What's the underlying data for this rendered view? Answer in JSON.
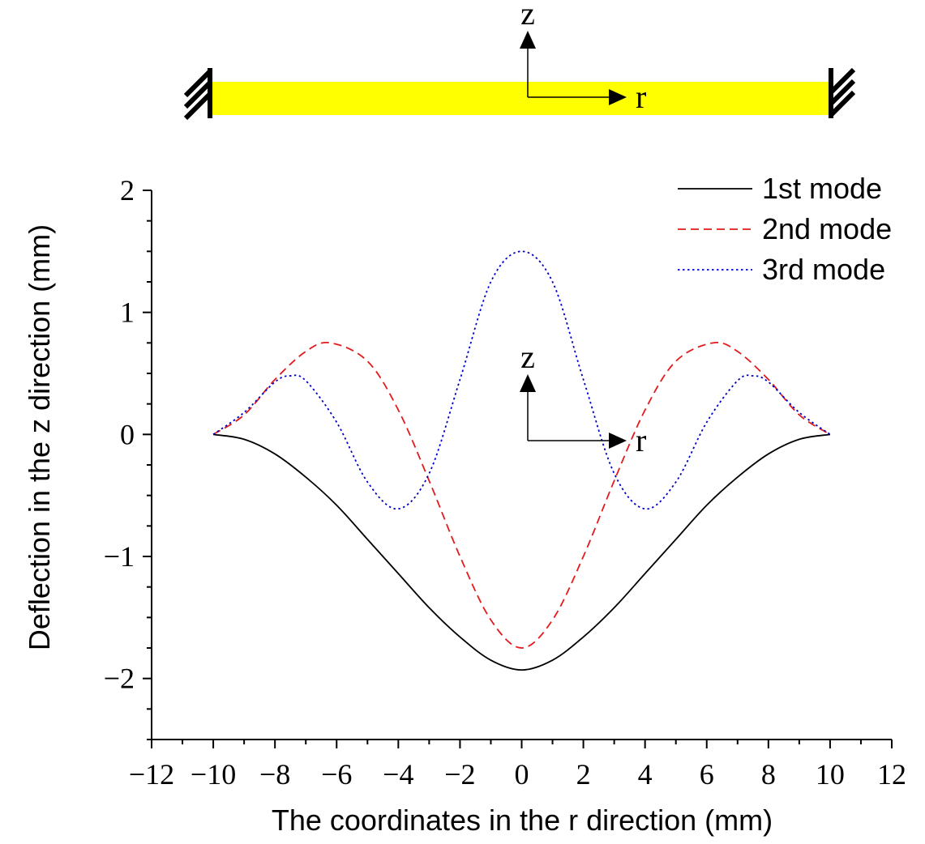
{
  "beam_diagram": {
    "beam_color": "#FFFF00",
    "axis_z_label": "z",
    "axis_r_label": "r"
  },
  "plot_coord_labels": {
    "z": "z",
    "r": "r"
  },
  "chart_data": {
    "type": "line",
    "title": "",
    "xlabel": "The coordinates in the r direction (mm)",
    "ylabel": "Deflection in the z direction (mm)",
    "xlim": [
      -12,
      12
    ],
    "ylim": [
      -2.5,
      2
    ],
    "x_ticks": [
      -12,
      -10,
      -8,
      -6,
      -4,
      -2,
      0,
      2,
      4,
      6,
      8,
      10,
      12
    ],
    "x_tick_labels": [
      "−12",
      "−10",
      "−8",
      "−6",
      "−4",
      "−2",
      "0",
      "2",
      "4",
      "6",
      "8",
      "10",
      "12"
    ],
    "y_ticks": [
      -2,
      -1,
      0,
      1,
      2
    ],
    "y_tick_labels": [
      "−2",
      "−1",
      "0",
      "1",
      "2"
    ],
    "grid": false,
    "legend_position": "top-right",
    "series": [
      {
        "name": "1st mode",
        "color": "#000000",
        "style": "solid",
        "x": [
          -10,
          -9,
          -8,
          -7,
          -6,
          -5,
          -4,
          -3,
          -2,
          -1,
          0,
          1,
          2,
          3,
          4,
          5,
          6,
          7,
          8,
          9,
          10
        ],
        "values": [
          0,
          -0.04,
          -0.16,
          -0.35,
          -0.58,
          -0.86,
          -1.14,
          -1.42,
          -1.66,
          -1.85,
          -1.93,
          -1.85,
          -1.66,
          -1.42,
          -1.14,
          -0.86,
          -0.58,
          -0.35,
          -0.16,
          -0.04,
          0
        ]
      },
      {
        "name": "2nd mode",
        "color": "#E41A1C",
        "style": "dashed",
        "x": [
          -10,
          -9,
          -8,
          -7,
          -6.2,
          -5,
          -4,
          -3,
          -2,
          -1,
          0,
          1,
          2,
          3,
          4,
          5,
          6.2,
          7,
          8,
          9,
          10
        ],
        "values": [
          0,
          0.16,
          0.45,
          0.68,
          0.75,
          0.6,
          0.2,
          -0.38,
          -1.0,
          -1.52,
          -1.75,
          -1.52,
          -1.0,
          -0.38,
          0.2,
          0.6,
          0.75,
          0.68,
          0.45,
          0.16,
          0
        ]
      },
      {
        "name": "3rd mode",
        "color": "#0000CC",
        "style": "dotted",
        "x": [
          -10,
          -9,
          -8,
          -7.5,
          -7,
          -6,
          -5,
          -4,
          -3,
          -2,
          -1,
          0,
          1,
          2,
          3,
          4,
          5,
          6,
          7,
          7.5,
          8,
          9,
          10
        ],
        "values": [
          0,
          0.18,
          0.43,
          0.48,
          0.44,
          0.1,
          -0.39,
          -0.61,
          -0.32,
          0.45,
          1.25,
          1.5,
          1.25,
          0.45,
          -0.32,
          -0.61,
          -0.39,
          0.1,
          0.44,
          0.48,
          0.43,
          0.18,
          0
        ]
      }
    ]
  }
}
